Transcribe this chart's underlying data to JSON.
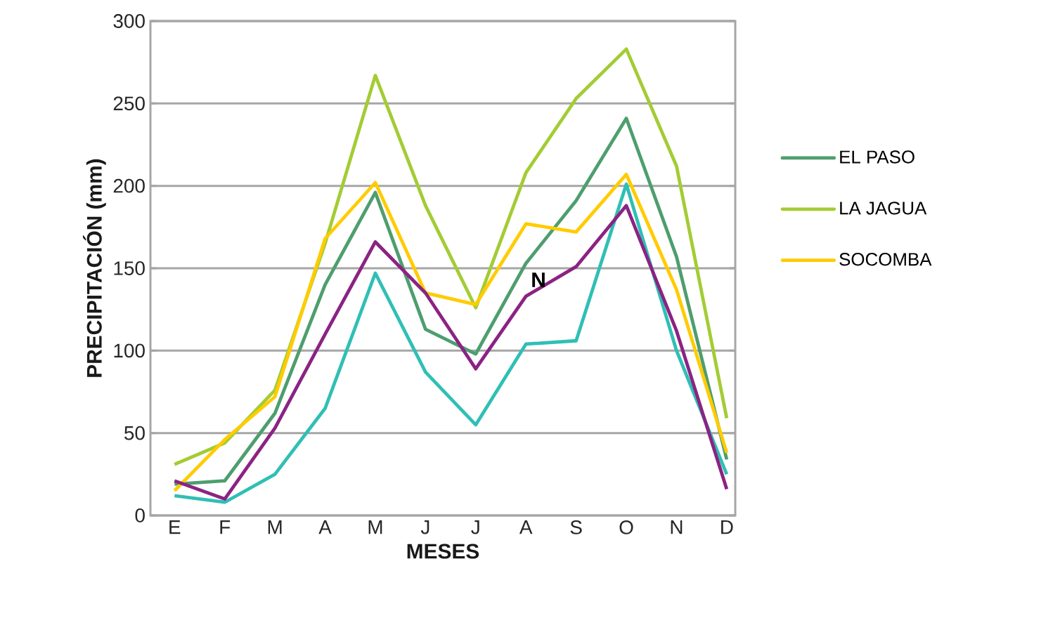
{
  "chart_data": {
    "type": "line",
    "xlabel": "MESES",
    "ylabel": "PRECIPITACIÓN (mm)",
    "categories": [
      "E",
      "F",
      "M",
      "A",
      "M",
      "J",
      "J",
      "A",
      "S",
      "O",
      "N",
      "D"
    ],
    "series": [
      {
        "name": "EL PASO",
        "color": "#4e9e6e",
        "values": [
          19,
          21,
          62,
          140,
          196,
          113,
          98,
          153,
          191,
          241,
          157,
          34
        ]
      },
      {
        "name": "LA JAGUA",
        "color": "#a3cc34",
        "values": [
          31,
          44,
          76,
          165,
          267,
          188,
          126,
          208,
          253,
          283,
          212,
          59
        ]
      },
      {
        "name": "SOCOMBA",
        "color": "#ffcc00",
        "values": [
          15,
          46,
          72,
          168,
          202,
          135,
          128,
          177,
          172,
          207,
          137,
          38
        ]
      },
      {
        "color": "#2fbfb5",
        "values": [
          12,
          8,
          25,
          65,
          147,
          87,
          55,
          104,
          106,
          201,
          100,
          25
        ]
      },
      {
        "color": "#8b2383",
        "values": [
          21,
          10,
          53,
          110,
          166,
          135,
          89,
          133,
          151,
          188,
          112,
          16
        ]
      }
    ],
    "ylim": [
      0,
      300
    ],
    "yticks": [
      0,
      50,
      100,
      150,
      200,
      250,
      300
    ],
    "grid": "y",
    "legend": "right",
    "marker": "none",
    "line_style": "solid",
    "annotations": [
      "N"
    ]
  }
}
